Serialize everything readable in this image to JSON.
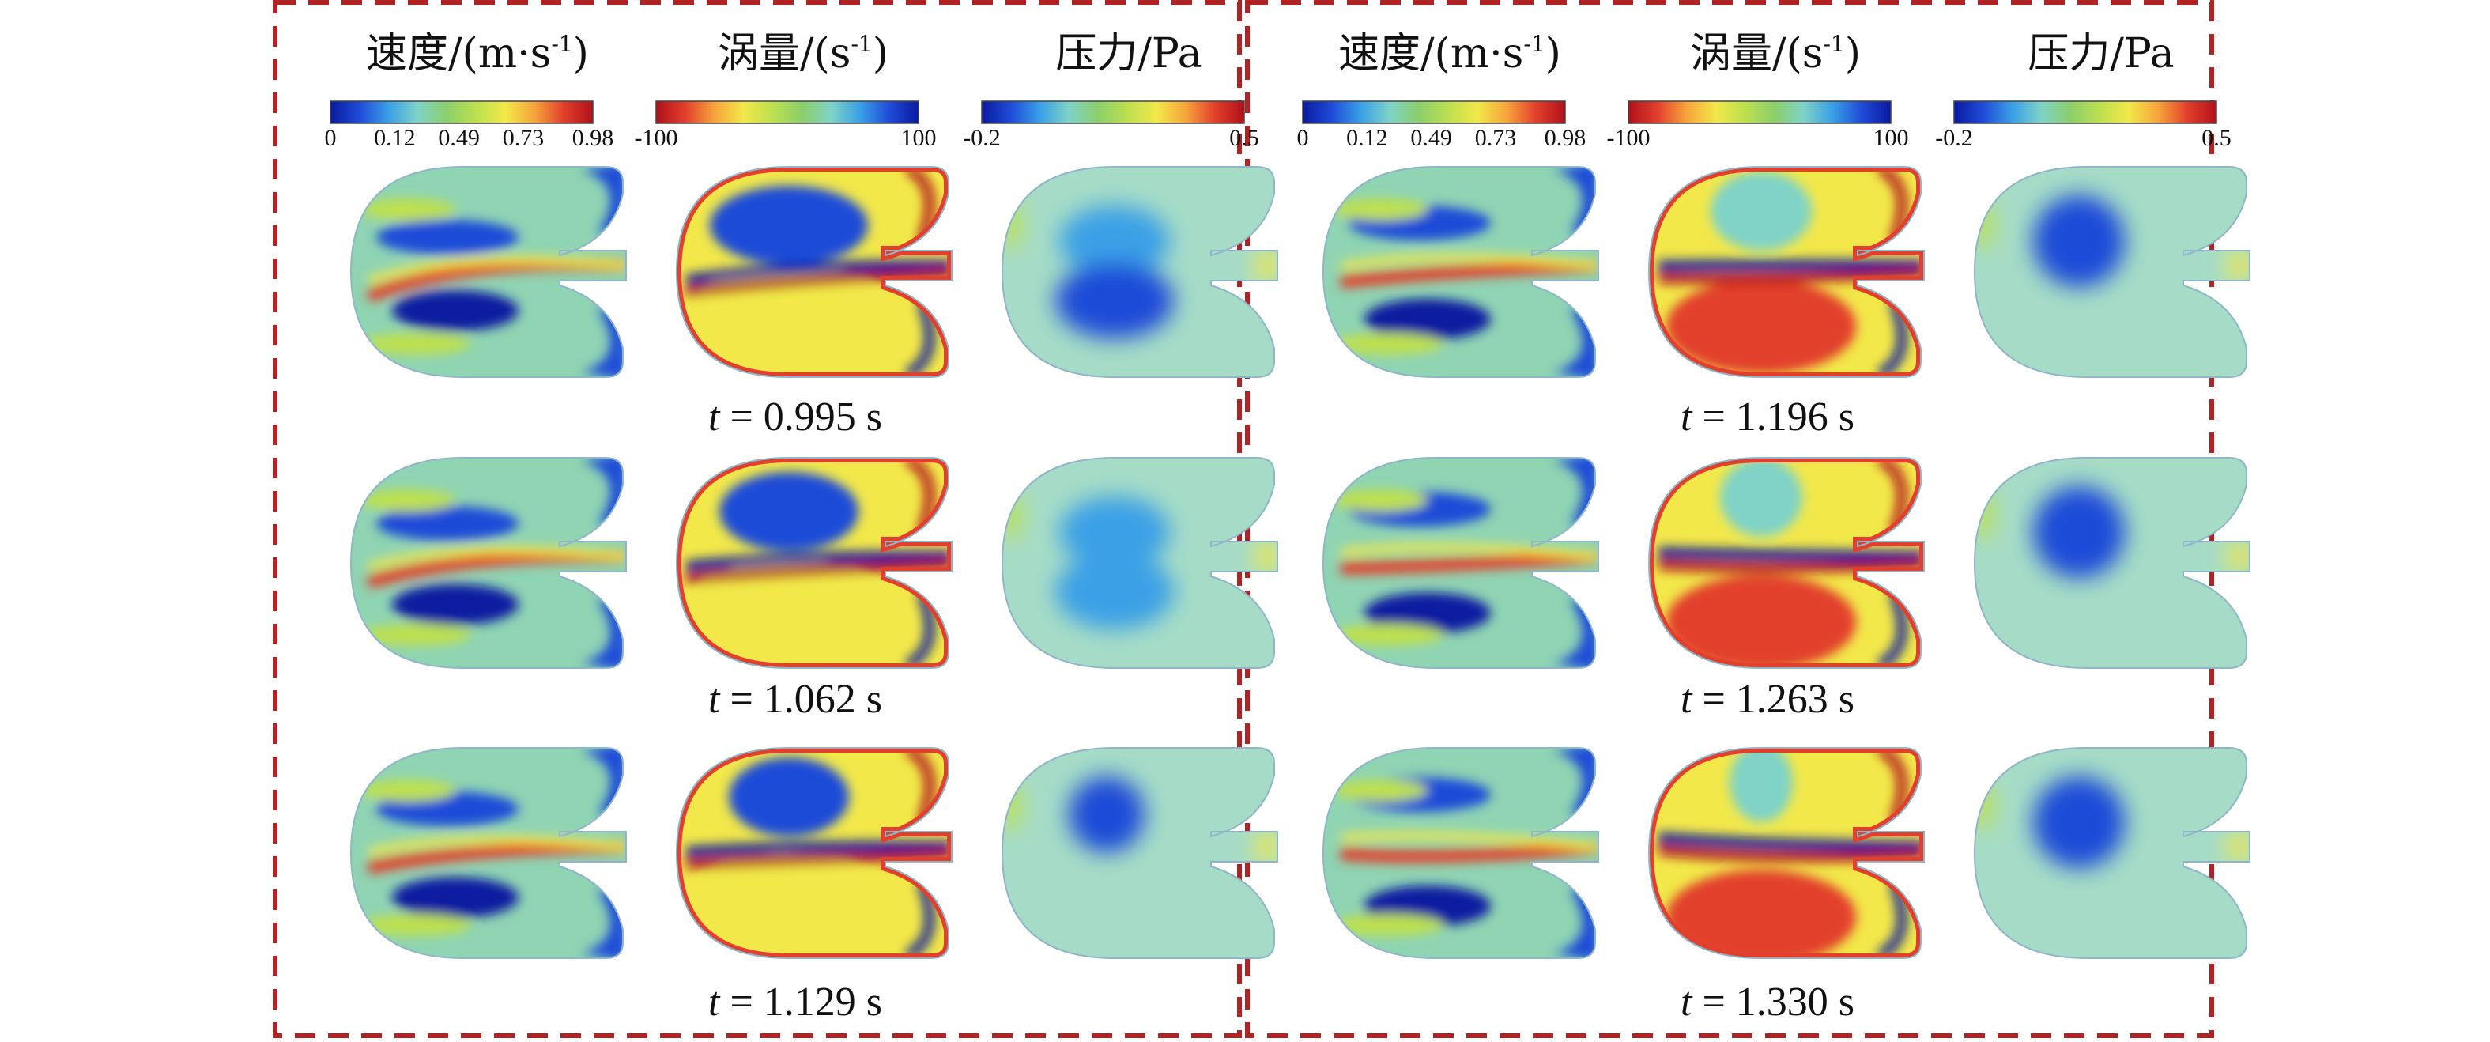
{
  "colors": {
    "frame": "#b22222",
    "jet": [
      "#0a1aa0",
      "#1f4bd8",
      "#3aa0e6",
      "#7fd3c7",
      "#8ccf6a",
      "#bde04f",
      "#f2e84a",
      "#f6a43b",
      "#e2402c",
      "#b0101a"
    ],
    "fluid_bg": "#8fd4b3",
    "pressure_bg": "#a6dcc7"
  },
  "panels": [
    {
      "headers": [
        {
          "text": "速度/(m·s",
          "sup": "-1",
          "tail": ")"
        },
        {
          "text": "涡量/(s",
          "sup": "-1",
          "tail": ")"
        },
        {
          "text": "压力/Pa",
          "sup": "",
          "tail": ""
        }
      ],
      "colorbars": [
        {
          "ticks": [
            "0",
            "0.12",
            "0.49",
            "0.73",
            "0.98"
          ],
          "reversed": false
        },
        {
          "ticks": [
            "-100",
            "100"
          ],
          "reversed": true
        },
        {
          "ticks": [
            "-0.2",
            "0.5"
          ],
          "reversed": false
        }
      ],
      "captions": [
        {
          "var": "t",
          "eq": " = 0.995 s",
          "phase": 0
        },
        {
          "var": "t",
          "eq": " = 1.062 s",
          "phase": 1
        },
        {
          "var": "t",
          "eq": " = 1.129 s",
          "phase": 2
        }
      ]
    },
    {
      "headers": [
        {
          "text": "速度/(m·s",
          "sup": "-1",
          "tail": ")"
        },
        {
          "text": "涡量/(s",
          "sup": "-1",
          "tail": ")"
        },
        {
          "text": "压力/Pa",
          "sup": "",
          "tail": ""
        }
      ],
      "colorbars": [
        {
          "ticks": [
            "0",
            "0.12",
            "0.49",
            "0.73",
            "0.98"
          ],
          "reversed": false
        },
        {
          "ticks": [
            "-100",
            "100"
          ],
          "reversed": true
        },
        {
          "ticks": [
            "-0.2",
            "0.5"
          ],
          "reversed": false
        }
      ],
      "captions": [
        {
          "var": "t",
          "eq": " = 1.196 s",
          "phase": 3
        },
        {
          "var": "t",
          "eq": " = 1.263 s",
          "phase": 4
        },
        {
          "var": "t",
          "eq": " = 1.330 s",
          "phase": 5
        }
      ]
    }
  ]
}
